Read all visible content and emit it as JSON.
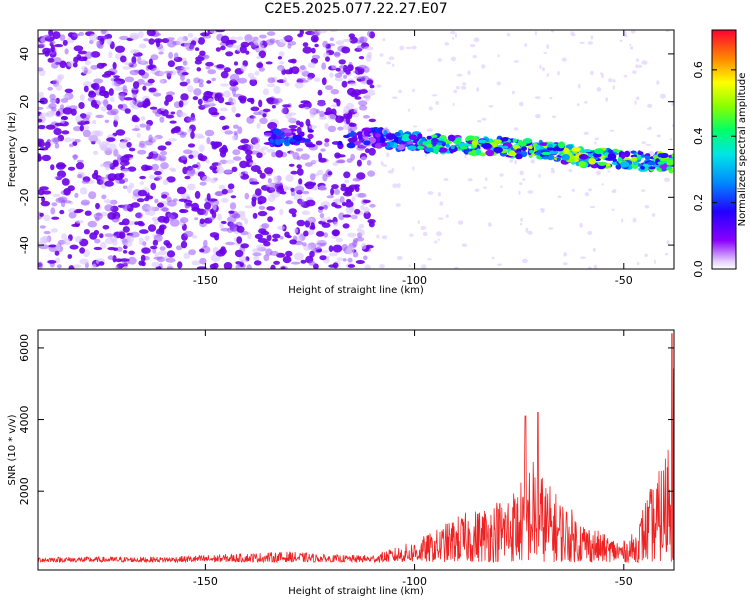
{
  "title": "C2E5.2025.077.22.27.E07",
  "chart_data": [
    {
      "type": "heatmap",
      "xlabel": "Height of straight line (km)",
      "ylabel": "Frequency (Hz)",
      "xlim": [
        -190,
        -38
      ],
      "ylim": [
        -50,
        50
      ],
      "xticks": [
        -150,
        -100,
        -50
      ],
      "yticks": [
        -40,
        -20,
        0,
        20,
        40
      ],
      "grid": false,
      "colorbar": {
        "label": "Normalized spectral amplitude",
        "range": [
          0.0,
          0.72
        ],
        "ticks": [
          0.0,
          0.2,
          0.4,
          0.6
        ],
        "colormap": "hsv-purple-to-red",
        "low_color": "#ffffff",
        "high_color": "#ff0033"
      },
      "signal_track": {
        "description_values": "center frequency of strong return vs height",
        "x": [
          -135,
          -130,
          -110,
          -105,
          -100,
          -90,
          -80,
          -70,
          -60,
          -50,
          -45,
          -40,
          -38
        ],
        "y": [
          5,
          5,
          5,
          4,
          3,
          2,
          1,
          0,
          -3,
          -4,
          -5,
          -5,
          -6
        ],
        "peak_amplitude": [
          0.2,
          0.25,
          0.2,
          0.3,
          0.4,
          0.45,
          0.5,
          0.5,
          0.55,
          0.55,
          0.4,
          0.5,
          0.5
        ]
      },
      "noise_region_x": [
        -190,
        -110
      ]
    },
    {
      "type": "line",
      "xlabel": "Height of straight line (km)",
      "ylabel": "SNR (10 * v/v)",
      "xlim": [
        -190,
        -38
      ],
      "ylim": [
        -200,
        6500
      ],
      "xticks": [
        -150,
        -100,
        -50
      ],
      "yticks": [
        2000,
        4000,
        6000
      ],
      "grid": false,
      "series": [
        {
          "color": "#ee2222",
          "envelope_x": [
            -190,
            -160,
            -130,
            -120,
            -110,
            -105,
            -100,
            -95,
            -90,
            -85,
            -80,
            -75,
            -72,
            -70,
            -68,
            -65,
            -60,
            -55,
            -50,
            -47,
            -45,
            -42,
            -40,
            -38
          ],
          "envelope_y": [
            150,
            150,
            300,
            200,
            200,
            400,
            600,
            900,
            1300,
            1500,
            1800,
            2200,
            3000,
            2600,
            2200,
            1800,
            1200,
            800,
            600,
            900,
            1800,
            2400,
            3200,
            6400
          ],
          "peaks": [
            {
              "x": -73.5,
              "y": 4100
            },
            {
              "x": -70.5,
              "y": 4200
            },
            {
              "x": -38.5,
              "y": 6400
            }
          ]
        }
      ]
    }
  ]
}
